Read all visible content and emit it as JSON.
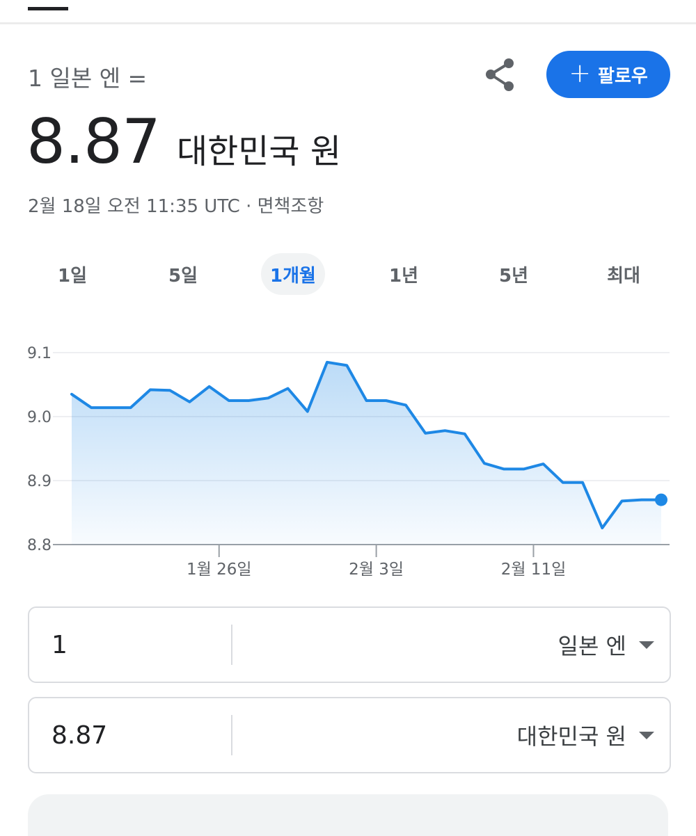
{
  "header": {
    "base_label": "1 일본 엔 =",
    "follow_label": "팔로우",
    "share_icon": "share-icon",
    "add_icon": "plus-icon"
  },
  "rate": {
    "value": "8.87",
    "currency": "대한민국 원"
  },
  "timestamp": {
    "text": "2월 18일 오전 11:35 UTC · ",
    "disclaimer": "면책조항"
  },
  "range_tabs": [
    {
      "label": "1일",
      "active": false
    },
    {
      "label": "5일",
      "active": false
    },
    {
      "label": "1개월",
      "active": true
    },
    {
      "label": "1년",
      "active": false
    },
    {
      "label": "5년",
      "active": false
    },
    {
      "label": "최대",
      "active": false
    }
  ],
  "colors": {
    "accent": "#1a73e8",
    "line": "#1e88e5",
    "text_secondary": "#5f6368"
  },
  "chart_data": {
    "type": "area",
    "ylim": [
      8.8,
      9.1
    ],
    "y_ticks": [
      9.1,
      9.0,
      8.9,
      8.8
    ],
    "y_tick_labels": [
      "9.1",
      "9.0",
      "8.9",
      "8.8"
    ],
    "x_tick_labels": [
      "1월 26일",
      "2월 3일",
      "2월 11일"
    ],
    "x_tick_positions": [
      7.5,
      15.5,
      23.5
    ],
    "x_count": 31,
    "grid": true,
    "series": [
      {
        "values": [
          9.035,
          9.014,
          9.014,
          9.014,
          9.042,
          9.041,
          9.023,
          9.047,
          9.025,
          9.025,
          9.029,
          9.044,
          9.008,
          9.085,
          9.08,
          9.025,
          9.025,
          9.018,
          8.974,
          8.978,
          8.973,
          8.927,
          8.918,
          8.918,
          8.926,
          8.897,
          8.897,
          8.826,
          8.868,
          8.87,
          8.87
        ]
      }
    ]
  },
  "converter": {
    "from": {
      "value": "1",
      "currency": "일본 엔"
    },
    "to": {
      "value": "8.87",
      "currency": "대한민국 원"
    }
  }
}
